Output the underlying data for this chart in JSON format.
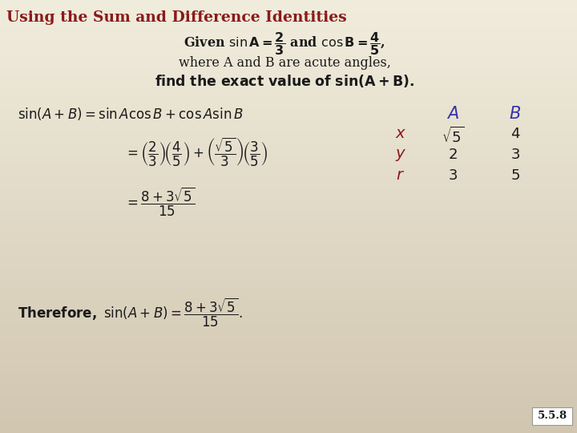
{
  "title": "Using the Sum and Difference Identities",
  "title_color": "#8b1a1a",
  "background_color": "#ede8d5",
  "text_color": "#1a1a1a",
  "blue_color": "#3333aa",
  "red_color": "#8b1a1a",
  "page_number": "5.5.8",
  "figsize": [
    7.2,
    5.4
  ],
  "dpi": 100
}
